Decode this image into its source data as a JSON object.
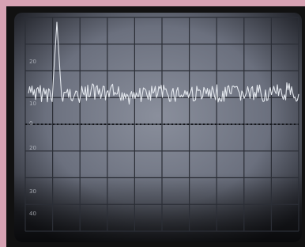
{
  "screen": {
    "scale_labels": [
      "20",
      "10",
      "0",
      "20",
      "30",
      "40"
    ]
  }
}
